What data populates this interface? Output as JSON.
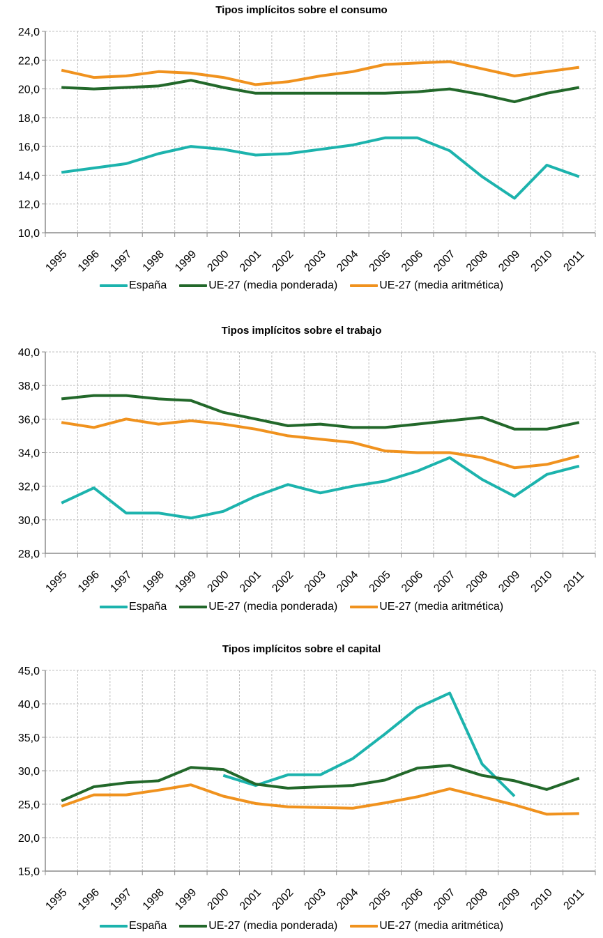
{
  "colors": {
    "espana": "#1cb3ad",
    "ue27_ponderada": "#22682a",
    "ue27_aritmetica": "#f0921e",
    "grid": "#c0c0c0",
    "axis": "#8c8c8c"
  },
  "legend": [
    {
      "key": "espana",
      "label": "España"
    },
    {
      "key": "ue27_ponderada",
      "label": "UE-27 (media ponderada)"
    },
    {
      "key": "ue27_aritmetica",
      "label": "UE-27 (media aritmética)"
    }
  ],
  "chart_data": [
    {
      "type": "line",
      "title": "Tipos implícitos sobre el consumo",
      "xlabel": "",
      "ylabel": "",
      "categories": [
        "1995",
        "1996",
        "1997",
        "1998",
        "1999",
        "2000",
        "2001",
        "2002",
        "2003",
        "2004",
        "2005",
        "2006",
        "2007",
        "2008",
        "2009",
        "2010",
        "2011"
      ],
      "ylim": [
        10,
        24
      ],
      "yticks": [
        10,
        12,
        14,
        16,
        18,
        20,
        22,
        24
      ],
      "ytick_labels": [
        "10,0",
        "12,0",
        "14,0",
        "16,0",
        "18,0",
        "20,0",
        "22,0",
        "24,0"
      ],
      "grid": true,
      "legend_position": "bottom",
      "series": [
        {
          "key": "espana",
          "name": "España",
          "values": [
            14.2,
            14.5,
            14.8,
            15.5,
            16.0,
            15.8,
            15.4,
            15.5,
            15.8,
            16.1,
            16.6,
            16.6,
            15.7,
            13.9,
            12.4,
            14.7,
            13.9
          ]
        },
        {
          "key": "ue27_ponderada",
          "name": "UE-27 (media ponderada)",
          "values": [
            20.1,
            20.0,
            20.1,
            20.2,
            20.6,
            20.1,
            19.7,
            19.7,
            19.7,
            19.7,
            19.7,
            19.8,
            20.0,
            19.6,
            19.1,
            19.7,
            20.1
          ]
        },
        {
          "key": "ue27_aritmetica",
          "name": "UE-27 (media aritmética)",
          "values": [
            21.3,
            20.8,
            20.9,
            21.2,
            21.1,
            20.8,
            20.3,
            20.5,
            20.9,
            21.2,
            21.7,
            21.8,
            21.9,
            21.4,
            20.9,
            21.2,
            21.5
          ]
        }
      ]
    },
    {
      "type": "line",
      "title": "Tipos implícitos sobre el trabajo",
      "xlabel": "",
      "ylabel": "",
      "categories": [
        "1995",
        "1996",
        "1997",
        "1998",
        "1999",
        "2000",
        "2001",
        "2002",
        "2003",
        "2004",
        "2005",
        "2006",
        "2007",
        "2008",
        "2009",
        "2010",
        "2011"
      ],
      "ylim": [
        28,
        40
      ],
      "yticks": [
        28,
        30,
        32,
        34,
        36,
        38,
        40
      ],
      "ytick_labels": [
        "28,0",
        "30,0",
        "32,0",
        "34,0",
        "36,0",
        "38,0",
        "40,0"
      ],
      "grid": true,
      "legend_position": "bottom",
      "series": [
        {
          "key": "espana",
          "name": "España",
          "values": [
            31.0,
            31.9,
            30.4,
            30.4,
            30.1,
            30.5,
            31.4,
            32.1,
            31.6,
            32.0,
            32.3,
            32.9,
            33.7,
            32.4,
            31.4,
            32.7,
            33.2
          ]
        },
        {
          "key": "ue27_ponderada",
          "name": "UE-27 (media ponderada)",
          "values": [
            37.2,
            37.4,
            37.4,
            37.2,
            37.1,
            36.4,
            36.0,
            35.6,
            35.7,
            35.5,
            35.5,
            35.7,
            35.9,
            36.1,
            35.4,
            35.4,
            35.8
          ]
        },
        {
          "key": "ue27_aritmetica",
          "name": "UE-27 (media aritmética)",
          "values": [
            35.8,
            35.5,
            36.0,
            35.7,
            35.9,
            35.7,
            35.4,
            35.0,
            34.8,
            34.6,
            34.1,
            34.0,
            34.0,
            33.7,
            33.1,
            33.3,
            33.8
          ]
        }
      ]
    },
    {
      "type": "line",
      "title": "Tipos implícitos sobre el capital",
      "xlabel": "",
      "ylabel": "",
      "categories": [
        "1995",
        "1996",
        "1997",
        "1998",
        "1999",
        "2000",
        "2001",
        "2002",
        "2003",
        "2004",
        "2005",
        "2006",
        "2007",
        "2008",
        "2009",
        "2010",
        "2011"
      ],
      "ylim": [
        15,
        45
      ],
      "yticks": [
        15,
        20,
        25,
        30,
        35,
        40,
        45
      ],
      "ytick_labels": [
        "15,0",
        "20,0",
        "25,0",
        "30,0",
        "35,0",
        "40,0",
        "45,0"
      ],
      "grid": true,
      "legend_position": "bottom",
      "series": [
        {
          "key": "espana",
          "name": "España",
          "values": [
            null,
            null,
            null,
            null,
            null,
            29.3,
            27.8,
            29.4,
            29.4,
            31.8,
            35.5,
            39.4,
            41.6,
            31.0,
            26.2,
            null,
            null
          ]
        },
        {
          "key": "ue27_ponderada",
          "name": "UE-27 (media ponderada)",
          "values": [
            25.5,
            27.6,
            28.2,
            28.5,
            30.5,
            30.2,
            28.0,
            27.4,
            27.6,
            27.8,
            28.6,
            30.4,
            30.8,
            29.3,
            28.5,
            27.2,
            28.9
          ]
        },
        {
          "key": "ue27_aritmetica",
          "name": "UE-27 (media aritmética)",
          "values": [
            24.7,
            26.4,
            26.4,
            27.1,
            27.9,
            26.2,
            25.1,
            24.6,
            24.5,
            24.4,
            25.2,
            26.1,
            27.3,
            26.1,
            24.9,
            23.5,
            23.6
          ]
        }
      ]
    }
  ]
}
